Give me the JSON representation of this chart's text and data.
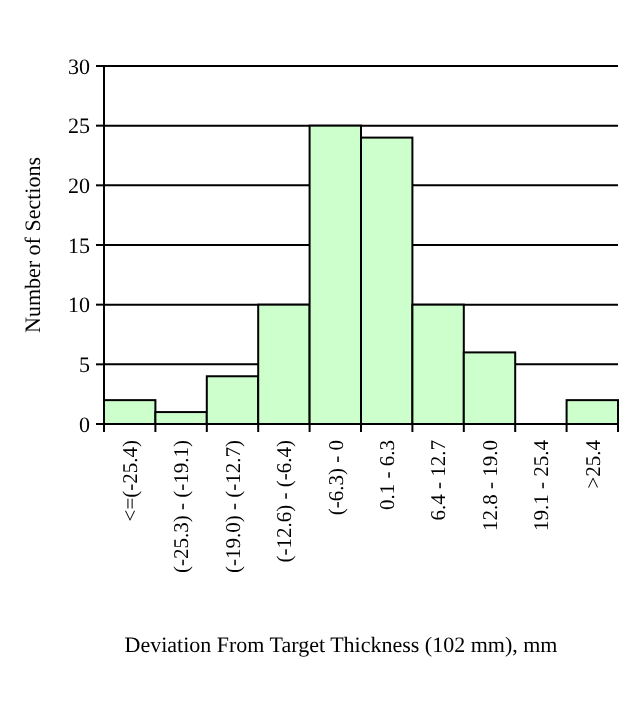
{
  "chart_data": {
    "type": "bar",
    "xlabel": "Deviation From Target Thickness (102 mm), mm",
    "ylabel": "Number of Sections",
    "categories": [
      "<=(-25.4)",
      "(-25.3) - (-19.1)",
      "(-19.0) - (-12.7)",
      "(-12.6) - (-6.4)",
      "(-6.3) - 0",
      "0.1 - 6.3",
      "6.4 - 12.7",
      "12.8 - 19.0",
      "19.1 - 25.4",
      ">25.4"
    ],
    "values": [
      2,
      1,
      4,
      10,
      25,
      24,
      10,
      6,
      0,
      2
    ],
    "color": "#ccffcc",
    "ylim": [
      0,
      30
    ],
    "yticks": [
      0,
      5,
      10,
      15,
      20,
      25,
      30
    ],
    "grid": "y"
  }
}
